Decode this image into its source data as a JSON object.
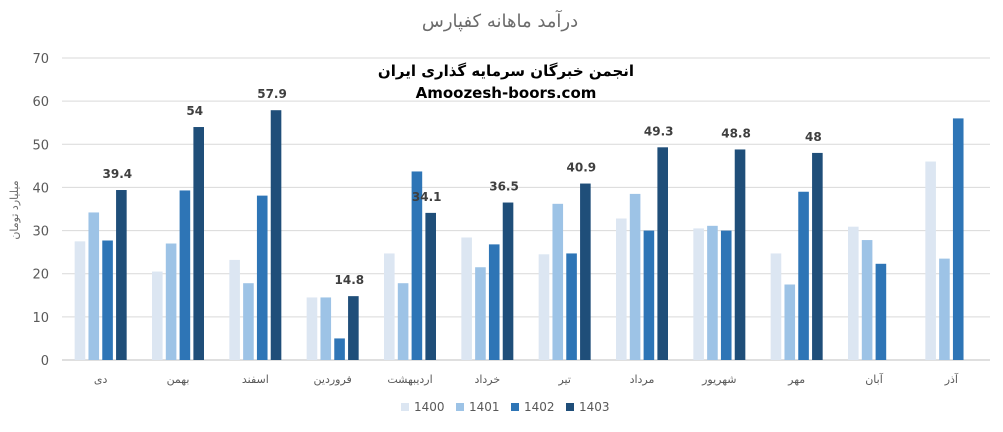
{
  "chart_data": {
    "type": "bar",
    "title": "درآمد ماهانه کفپارس",
    "ylabel": "میلیارد تومان",
    "xlabel": "",
    "ylim": [
      0,
      70
    ],
    "yticks": [
      0,
      10,
      20,
      30,
      40,
      50,
      60,
      70
    ],
    "grid": true,
    "legend_position": "bottom",
    "categories": [
      "دی",
      "بهمن",
      "اسفند",
      "فروردین",
      "اردیبهشت",
      "خرداد",
      "تیر",
      "مرداد",
      "شهریور",
      "مهر",
      "آبان",
      "آذر"
    ],
    "series": [
      {
        "name": "1400",
        "color": "#dce6f2",
        "values": [
          27.5,
          20.5,
          23.2,
          14.5,
          24.7,
          28.4,
          24.5,
          32.8,
          30.5,
          24.7,
          30.9,
          46
        ]
      },
      {
        "name": "1401",
        "color": "#9dc3e6",
        "values": [
          34.2,
          27,
          17.8,
          14.5,
          17.8,
          21.5,
          36.2,
          38.5,
          31.1,
          17.5,
          27.8,
          23.5
        ]
      },
      {
        "name": "1402",
        "color": "#2e75b6",
        "values": [
          27.7,
          39.3,
          38.1,
          5,
          43.7,
          26.8,
          24.7,
          30,
          30,
          39,
          22.3,
          56
        ]
      },
      {
        "name": "1403",
        "color": "#1f4e79",
        "values": [
          39.4,
          54,
          57.9,
          14.8,
          34.1,
          36.5,
          40.9,
          49.3,
          48.8,
          48,
          null,
          null
        ]
      }
    ],
    "data_labels": {
      "series": "1403",
      "values": [
        "39.4",
        "54",
        "57.9",
        "14.8",
        "34.1",
        "36.5",
        "40.9",
        "49.3",
        "48.8",
        "48",
        "",
        ""
      ]
    },
    "annotations": [
      "انجمن خبرگان سرمایه گذاری ایران",
      "Amoozesh-boors.com"
    ]
  },
  "colors": {
    "grid": "#d9d9d9",
    "axis": "#bfbfbf",
    "text": "#595959"
  }
}
